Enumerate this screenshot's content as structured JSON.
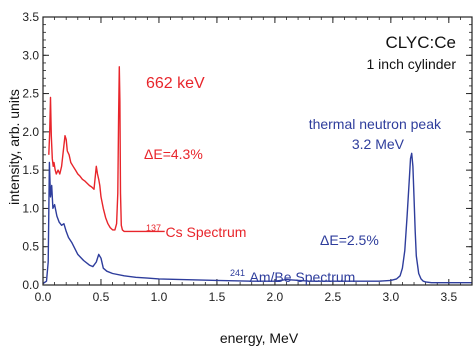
{
  "chart_data": {
    "type": "line",
    "xlabel": "energy, MeV",
    "ylabel": "intensity, arb. units",
    "xlim": [
      0,
      3.7
    ],
    "ylim": [
      0,
      3.5
    ],
    "x_ticks": [
      "0.0",
      "0.5",
      "1.0",
      "1.5",
      "2.0",
      "2.5",
      "3.0",
      "3.5"
    ],
    "x_tick_values": [
      0,
      0.5,
      1.0,
      1.5,
      2.0,
      2.5,
      3.0,
      3.5
    ],
    "y_ticks": [
      "0.0",
      "0.5",
      "1.0",
      "1.5",
      "2.0",
      "2.5",
      "3.0",
      "3.5"
    ],
    "y_tick_values": [
      0,
      0.5,
      1.0,
      1.5,
      2.0,
      2.5,
      3.0,
      3.5
    ],
    "grid": false,
    "colors": {
      "cs": "#e8252b",
      "ambe": "#2e3d9c",
      "axis": "#222222"
    },
    "series": [
      {
        "key": "cs",
        "x": [
          0.05,
          0.058,
          0.065,
          0.072,
          0.08,
          0.088,
          0.095,
          0.105,
          0.115,
          0.13,
          0.145,
          0.16,
          0.175,
          0.19,
          0.2,
          0.21,
          0.225,
          0.24,
          0.26,
          0.28,
          0.3,
          0.32,
          0.34,
          0.36,
          0.38,
          0.4,
          0.42,
          0.44,
          0.46,
          0.47,
          0.48,
          0.49,
          0.5,
          0.52,
          0.54,
          0.56,
          0.58,
          0.6,
          0.62,
          0.635,
          0.645,
          0.652,
          0.658,
          0.663,
          0.668,
          0.675,
          0.685,
          0.7,
          0.75,
          0.8,
          0.9,
          1.0,
          1.05
        ],
        "y": [
          1.7,
          2.0,
          2.45,
          1.95,
          1.65,
          1.55,
          1.6,
          1.5,
          1.45,
          1.5,
          1.45,
          1.55,
          1.75,
          1.95,
          1.9,
          1.75,
          1.7,
          1.6,
          1.55,
          1.5,
          1.45,
          1.42,
          1.38,
          1.36,
          1.33,
          1.3,
          1.28,
          1.25,
          1.55,
          1.45,
          1.38,
          1.3,
          1.15,
          1.0,
          0.88,
          0.8,
          0.75,
          0.72,
          0.72,
          0.8,
          1.2,
          2.2,
          2.85,
          2.4,
          1.2,
          0.78,
          0.72,
          0.7,
          0.7,
          0.7,
          0.7,
          0.7,
          0.7
        ]
      },
      {
        "key": "ambe",
        "x": [
          0.0,
          0.03,
          0.045,
          0.055,
          0.065,
          0.075,
          0.085,
          0.1,
          0.12,
          0.14,
          0.16,
          0.18,
          0.2,
          0.22,
          0.25,
          0.3,
          0.35,
          0.4,
          0.43,
          0.46,
          0.48,
          0.5,
          0.52,
          0.55,
          0.6,
          0.7,
          0.8,
          0.9,
          1.0,
          1.2,
          1.5,
          1.8,
          2.0,
          2.1,
          2.3,
          2.5,
          2.7,
          2.9,
          3.0,
          3.05,
          3.08,
          3.1,
          3.12,
          3.14,
          3.16,
          3.17,
          3.18,
          3.19,
          3.2,
          3.21,
          3.22,
          3.24,
          3.26,
          3.28,
          3.3,
          3.35,
          3.5,
          3.7
        ],
        "y": [
          0.02,
          0.05,
          0.3,
          1.6,
          1.15,
          1.3,
          1.0,
          1.05,
          0.9,
          0.82,
          0.78,
          0.8,
          0.7,
          0.62,
          0.55,
          0.4,
          0.32,
          0.26,
          0.24,
          0.3,
          0.4,
          0.35,
          0.22,
          0.18,
          0.15,
          0.12,
          0.1,
          0.09,
          0.08,
          0.07,
          0.06,
          0.05,
          0.05,
          0.07,
          0.05,
          0.05,
          0.05,
          0.05,
          0.06,
          0.08,
          0.12,
          0.22,
          0.45,
          0.9,
          1.4,
          1.65,
          1.72,
          1.55,
          1.15,
          0.7,
          0.38,
          0.15,
          0.08,
          0.05,
          0.04,
          0.03,
          0.03,
          0.03
        ]
      }
    ],
    "annotations": {
      "title": "CLYC:Ce",
      "subtitle": "1 inch cylinder",
      "cs_peak": "662 keV",
      "cs_res": "ΔE=4.3%",
      "cs_label_sup": "137",
      "cs_label": "Cs Spectrum",
      "neutron_peak": "thermal neutron peak",
      "neutron_energy": "3.2 MeV",
      "ambe_res": "ΔE=2.5%",
      "ambe_label_sup": "241",
      "ambe_label": "Am/Be Spectrum"
    }
  }
}
